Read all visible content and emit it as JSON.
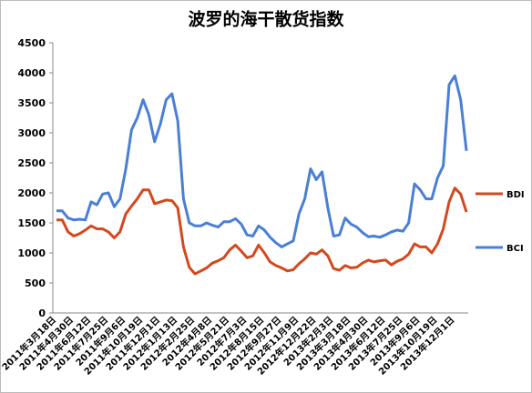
{
  "chart_data": {
    "type": "line",
    "title": "波罗的海干散货指数",
    "categories": [
      "2011年3月18日",
      null,
      null,
      "2011年4月30日",
      null,
      null,
      "2011年6月12日",
      null,
      null,
      "2011年7月25日",
      null,
      null,
      "2011年9月6日",
      null,
      null,
      "2011年10月19日",
      null,
      null,
      "2011年12月1日",
      null,
      null,
      "2012年1月13日",
      null,
      null,
      "2012年2月25日",
      null,
      null,
      "2012年4月8日",
      null,
      null,
      "2012年5月21日",
      null,
      null,
      "2012年7月3日",
      null,
      null,
      "2012年8月15日",
      null,
      null,
      "2012年9月27日",
      null,
      null,
      "2012年11月9日",
      null,
      null,
      "2012年12月22日",
      null,
      null,
      "2013年2月3日",
      null,
      null,
      "2013年3月18日",
      null,
      null,
      "2013年4月30日",
      null,
      null,
      "2013年6月12日",
      null,
      null,
      "2013年7月25日",
      null,
      null,
      "2013年9月6日",
      null,
      null,
      "2013年10月19日",
      null,
      null,
      "2013年12月1日",
      null,
      null
    ],
    "series": [
      {
        "name": "BDI",
        "color": "#d4481e",
        "values": [
          1550,
          1550,
          1350,
          1280,
          1320,
          1380,
          1450,
          1400,
          1400,
          1350,
          1250,
          1350,
          1650,
          1780,
          1900,
          2050,
          2050,
          1820,
          1850,
          1880,
          1870,
          1750,
          1100,
          760,
          650,
          700,
          750,
          830,
          870,
          920,
          1050,
          1130,
          1030,
          920,
          950,
          1130,
          1000,
          850,
          790,
          750,
          700,
          720,
          820,
          900,
          1000,
          980,
          1050,
          950,
          740,
          710,
          790,
          750,
          760,
          830,
          880,
          850,
          870,
          880,
          800,
          860,
          900,
          980,
          1150,
          1100,
          1100,
          1000,
          1150,
          1400,
          1850,
          2080,
          1980,
          1680
        ]
      },
      {
        "name": "BCI",
        "color": "#4a7fd6",
        "values": [
          1700,
          1700,
          1580,
          1550,
          1560,
          1550,
          1850,
          1800,
          1980,
          2000,
          1770,
          1900,
          2400,
          3050,
          3250,
          3550,
          3300,
          2850,
          3150,
          3550,
          3650,
          3200,
          1900,
          1500,
          1450,
          1450,
          1500,
          1460,
          1430,
          1520,
          1520,
          1570,
          1480,
          1300,
          1280,
          1450,
          1380,
          1260,
          1170,
          1100,
          1150,
          1200,
          1650,
          1900,
          2400,
          2220,
          2350,
          1750,
          1280,
          1300,
          1580,
          1480,
          1430,
          1340,
          1270,
          1280,
          1260,
          1300,
          1350,
          1380,
          1360,
          1500,
          2150,
          2050,
          1900,
          1900,
          2250,
          2450,
          3800,
          3950,
          3550,
          2700
        ]
      }
    ],
    "ylim": [
      0,
      4500
    ],
    "yticks": [
      0,
      500,
      1000,
      1500,
      2000,
      2500,
      3000,
      3500,
      4000,
      4500
    ],
    "legend": "right"
  }
}
